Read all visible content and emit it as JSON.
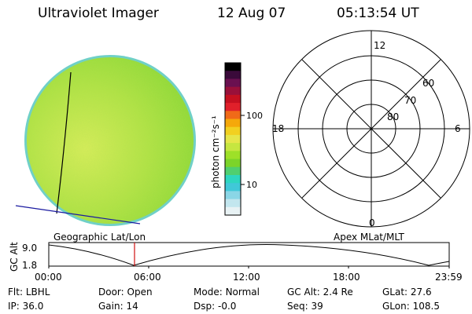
{
  "header": {
    "instrument": "Ultraviolet Imager",
    "date": "12 Aug 07",
    "time": "05:13:54 UT"
  },
  "colorbar": {
    "unit_label": "photon cm⁻²s⁻¹",
    "ticks": [
      "100",
      "10"
    ],
    "colors": [
      "#000000",
      "#3a0a3a",
      "#6a1050",
      "#99103a",
      "#c51020",
      "#e0202a",
      "#f06a18",
      "#f5a80a",
      "#f2d020",
      "#e6e64a",
      "#c6e640",
      "#9ee028",
      "#7cd42a",
      "#50cf70",
      "#2ed6c0",
      "#40c8d8",
      "#8ad6e6",
      "#c2e6ee",
      "#e8f2f4"
    ]
  },
  "left_panel": {
    "label": "Geographic Lat/Lon",
    "image_colors": {
      "main": "#b0e246",
      "light": "#d4ec5a",
      "dark": "#8ed838",
      "edge": "#6fd0c8"
    }
  },
  "right_panel": {
    "label": "Apex MLat/MLT",
    "mlt_labels": [
      "12",
      "18",
      "6",
      "0"
    ],
    "mlat_labels": [
      "60",
      "70",
      "80"
    ]
  },
  "altitude_plot": {
    "axis_label": "GC Alt",
    "y_ticks": [
      "9.0",
      "1.8"
    ],
    "x_ticks": [
      "00:00",
      "06:00",
      "12:00",
      "18:00",
      "23:59"
    ],
    "marker_time": "05:13",
    "marker_color": "#d01010"
  },
  "status": {
    "row1": [
      {
        "label": "Flt:",
        "value": "LBHL"
      },
      {
        "label": "Door:",
        "value": "Open"
      },
      {
        "label": "Mode:",
        "value": "Normal"
      },
      {
        "label": "GC Alt:",
        "value": "2.4 Re"
      },
      {
        "label": "GLat:",
        "value": "27.6"
      }
    ],
    "row2": [
      {
        "label": "IP:",
        "value": "36.0"
      },
      {
        "label": "Gain:",
        "value": "14"
      },
      {
        "label": "Dsp:",
        "value": "-0.0"
      },
      {
        "label": "Seq:",
        "value": "39"
      },
      {
        "label": "GLon:",
        "value": "108.5"
      }
    ]
  }
}
